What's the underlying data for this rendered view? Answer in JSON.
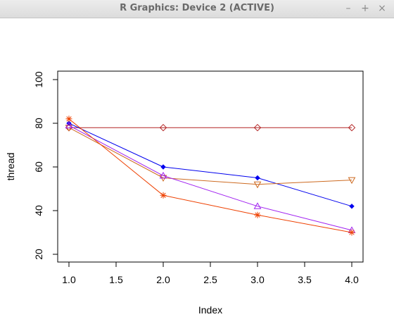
{
  "window": {
    "title": "R Graphics: Device 2 (ACTIVE)",
    "buttons": [
      {
        "name": "minimize-button",
        "glyph": "–"
      },
      {
        "name": "maximize-button",
        "glyph": "+"
      },
      {
        "name": "close-button",
        "glyph": "×"
      }
    ]
  },
  "chart_data": {
    "type": "line",
    "title": "",
    "xlabel": "Index",
    "ylabel": "thread",
    "xlim": [
      1,
      4
    ],
    "ylim": [
      20,
      100
    ],
    "xticks": [
      1.0,
      1.5,
      2.0,
      2.5,
      3.0,
      3.5,
      4.0
    ],
    "xtick_labels": [
      "1.0",
      "1.5",
      "2.0",
      "2.5",
      "3.0",
      "3.5",
      "4.0"
    ],
    "yticks": [
      20,
      40,
      60,
      80,
      100
    ],
    "ytick_labels": [
      "20",
      "40",
      "60",
      "80",
      "100"
    ],
    "grid": false,
    "legend": "none",
    "x": [
      1,
      2,
      3,
      4
    ],
    "series": [
      {
        "color": "#b22222",
        "marker": "diamond-open",
        "values": [
          78,
          78,
          78,
          78
        ]
      },
      {
        "color": "#0000ee",
        "marker": "diamond-filled",
        "values": [
          80,
          60,
          55,
          42
        ]
      },
      {
        "color": "#cd6a20",
        "marker": "triangle-down-open",
        "values": [
          78,
          55,
          52,
          54
        ]
      },
      {
        "color": "#a020f0",
        "marker": "triangle-up-open",
        "values": [
          79,
          56,
          42,
          31
        ]
      },
      {
        "color": "#ee4000",
        "marker": "asterisk",
        "values": [
          82,
          47,
          38,
          30
        ]
      }
    ]
  }
}
